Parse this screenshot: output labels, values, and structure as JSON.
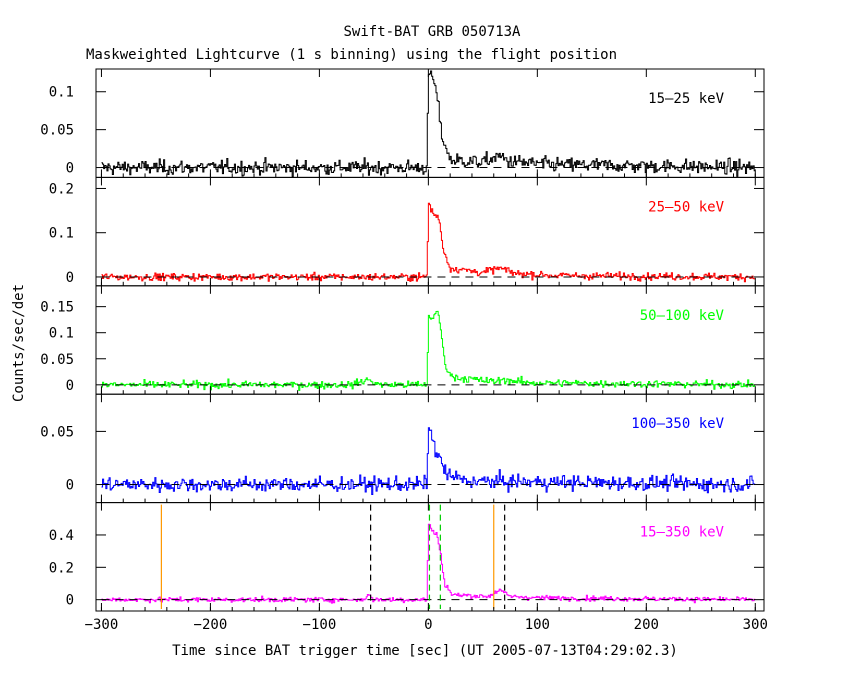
{
  "chart_data": {
    "type": "line",
    "title": "Swift-BAT GRB 050713A",
    "subtitle": "Maskweighted Lightcurve (1 s binning) using the flight position",
    "xlabel": "Time since BAT trigger time [sec] (UT 2005-07-13T04:29:02.3)",
    "ylabel": "Counts/sec/det",
    "xlim": [
      -305,
      308
    ],
    "x_ticks": [
      -300,
      -200,
      -100,
      0,
      100,
      200,
      300
    ],
    "x_tick_labels": [
      "−300",
      "−200",
      "−100",
      "0",
      "100",
      "200",
      "300"
    ],
    "bin_seconds": 1,
    "panels": [
      {
        "band": "15–25 keV",
        "color": "#000000",
        "ylim": [
          -0.013,
          0.13
        ],
        "y_ticks": [
          0,
          0.05,
          0.1
        ],
        "y_tick_labels": [
          "0",
          "0.05",
          "0.1"
        ],
        "noise": 0.008,
        "profile": [
          [
            -300,
            0
          ],
          [
            -60,
            0
          ],
          [
            -1,
            0
          ],
          [
            0,
            0.125
          ],
          [
            5,
            0.115
          ],
          [
            8,
            0.095
          ],
          [
            12,
            0.045
          ],
          [
            20,
            0.01
          ],
          [
            50,
            0.007
          ],
          [
            65,
            0.015
          ],
          [
            75,
            0.008
          ],
          [
            110,
            0.004
          ],
          [
            300,
            0
          ]
        ]
      },
      {
        "band": "25–50 keV",
        "color": "#ff0000",
        "ylim": [
          -0.02,
          0.225
        ],
        "y_ticks": [
          0,
          0.1,
          0.2
        ],
        "y_tick_labels": [
          "0",
          "0.1",
          "0.2"
        ],
        "noise": 0.007,
        "profile": [
          [
            -300,
            0
          ],
          [
            -1,
            0
          ],
          [
            0,
            0.17
          ],
          [
            3,
            0.15
          ],
          [
            6,
            0.14
          ],
          [
            10,
            0.13
          ],
          [
            14,
            0.06
          ],
          [
            20,
            0.02
          ],
          [
            50,
            0.01
          ],
          [
            65,
            0.02
          ],
          [
            80,
            0.008
          ],
          [
            120,
            0.003
          ],
          [
            300,
            0
          ]
        ]
      },
      {
        "band": "50–100 keV",
        "color": "#00ff00",
        "ylim": [
          -0.018,
          0.19
        ],
        "y_ticks": [
          0,
          0.05,
          0.1,
          0.15
        ],
        "y_tick_labels": [
          "0",
          "0.05",
          "0.1",
          "0.15"
        ],
        "noise": 0.006,
        "profile": [
          [
            -300,
            0
          ],
          [
            -70,
            0
          ],
          [
            -55,
            0.01
          ],
          [
            -45,
            0
          ],
          [
            -1,
            0
          ],
          [
            0,
            0.13
          ],
          [
            5,
            0.13
          ],
          [
            9,
            0.14
          ],
          [
            12,
            0.1
          ],
          [
            15,
            0.04
          ],
          [
            22,
            0.015
          ],
          [
            60,
            0.006
          ],
          [
            70,
            0.01
          ],
          [
            90,
            0.004
          ],
          [
            300,
            0
          ]
        ]
      },
      {
        "band": "100–350 keV",
        "color": "#0000ff",
        "ylim": [
          -0.017,
          0.085
        ],
        "y_ticks": [
          0,
          0.05
        ],
        "y_tick_labels": [
          "0",
          "0.05"
        ],
        "noise": 0.006,
        "profile": [
          [
            -300,
            0
          ],
          [
            -1,
            0
          ],
          [
            0,
            0.06
          ],
          [
            4,
            0.04
          ],
          [
            8,
            0.03
          ],
          [
            12,
            0.02
          ],
          [
            18,
            0.008
          ],
          [
            40,
            0.003
          ],
          [
            300,
            0
          ]
        ]
      },
      {
        "band": "15–350 keV",
        "color": "#ff00ff",
        "ylim": [
          -0.07,
          0.6
        ],
        "y_ticks": [
          0,
          0.2,
          0.4
        ],
        "y_tick_labels": [
          "0",
          "0.2",
          "0.4"
        ],
        "noise": 0.013,
        "profile": [
          [
            -300,
            0
          ],
          [
            -60,
            0
          ],
          [
            -55,
            0.03
          ],
          [
            -50,
            0
          ],
          [
            -1,
            0
          ],
          [
            0,
            0.48
          ],
          [
            4,
            0.42
          ],
          [
            8,
            0.4
          ],
          [
            11,
            0.3
          ],
          [
            15,
            0.1
          ],
          [
            22,
            0.03
          ],
          [
            55,
            0.02
          ],
          [
            65,
            0.06
          ],
          [
            75,
            0.02
          ],
          [
            110,
            0.01
          ],
          [
            300,
            0
          ]
        ]
      }
    ],
    "markers": [
      {
        "x": -245,
        "color": "#ff9900",
        "style": "solid"
      },
      {
        "x": 60,
        "color": "#ff9900",
        "style": "solid"
      },
      {
        "x": -53,
        "color": "#000000",
        "style": "dashed"
      },
      {
        "x": 70,
        "color": "#000000",
        "style": "dashed"
      },
      {
        "x": 1,
        "color": "#00cc00",
        "style": "dashed"
      },
      {
        "x": 11,
        "color": "#00cc00",
        "style": "dashed"
      }
    ]
  }
}
